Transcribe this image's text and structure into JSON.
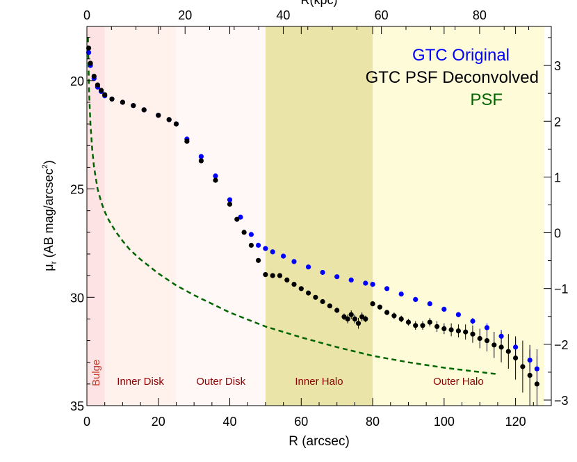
{
  "chart_data": {
    "type": "scatter",
    "title": "",
    "xlabel": "R (arcsec)",
    "ylabel_main": "μ",
    "ylabel_sub": "r",
    "ylabel_rest": " (AB mag/arcsec",
    "ylabel_sup": "2",
    "ylabel_close": ")",
    "top_xlabel": "R(kpc)",
    "xlim": [
      0,
      130
    ],
    "ylim": [
      35,
      17.5
    ],
    "top_xlim_kpc": [
      0,
      94.6
    ],
    "right_ylim": [
      -3.1,
      3.7
    ],
    "x_ticks": [
      "0",
      "20",
      "40",
      "60",
      "80",
      "100",
      "120"
    ],
    "y_ticks": [
      "20",
      "25",
      "30",
      "35"
    ],
    "top_ticks": [
      "0",
      "20",
      "40",
      "60",
      "80"
    ],
    "right_ticks": [
      "3",
      "2",
      "1",
      "0",
      "−1",
      "−2",
      "−3"
    ],
    "regions": [
      {
        "label": "Bulge",
        "x0": 0,
        "x1": 5,
        "color": "#fde3e3",
        "text_color": "#c0392b",
        "vertical": true
      },
      {
        "label": "Inner Disk",
        "x0": 5,
        "x1": 25,
        "color": "#fff1ec",
        "text_color": "#8b0000",
        "vertical": false
      },
      {
        "label": "Outer Disk",
        "x0": 25,
        "x1": 50,
        "color": "#fff8f7",
        "text_color": "#8b0000",
        "vertical": false
      },
      {
        "label": "Inner Halo",
        "x0": 50,
        "x1": 80,
        "color": "#ebe4a8",
        "text_color": "#8b0000",
        "vertical": false
      },
      {
        "label": "Outer Halo",
        "x0": 80,
        "x1": 128,
        "color": "#fefcd8",
        "text_color": "#8b0000",
        "vertical": false
      }
    ],
    "legend": [
      {
        "label": "GTC Original",
        "color": "#0000ff"
      },
      {
        "label": "GTC PSF Deconvolved",
        "color": "#000000"
      },
      {
        "label": "PSF",
        "color": "#006400"
      }
    ],
    "series": [
      {
        "name": "GTC Original",
        "color": "#0000ff",
        "x": [
          0.5,
          1,
          2,
          3,
          4,
          5,
          7,
          10,
          13,
          16,
          20,
          23,
          25,
          28,
          32,
          36,
          40,
          43,
          46,
          48,
          50,
          52,
          55,
          58,
          62,
          66,
          70,
          74,
          78,
          80,
          84,
          88,
          92,
          96,
          100,
          104,
          108,
          112,
          116,
          120,
          124,
          126
        ],
        "y": [
          18.7,
          19.3,
          19.9,
          20.3,
          20.5,
          20.7,
          20.85,
          21.0,
          21.15,
          21.35,
          21.6,
          21.8,
          22.0,
          22.7,
          23.5,
          24.4,
          25.5,
          26.3,
          27.1,
          27.6,
          27.75,
          27.9,
          28.1,
          28.35,
          28.6,
          28.85,
          29.05,
          29.2,
          29.35,
          29.4,
          29.6,
          29.85,
          30.1,
          30.3,
          30.55,
          30.8,
          31.1,
          31.4,
          31.8,
          32.3,
          32.9,
          33.3
        ],
        "err": [
          0.01,
          0.01,
          0.01,
          0.01,
          0.01,
          0.01,
          0.01,
          0.01,
          0.01,
          0.01,
          0.01,
          0.01,
          0.01,
          0.01,
          0.01,
          0.01,
          0.01,
          0.01,
          0.02,
          0.02,
          0.02,
          0.02,
          0.02,
          0.03,
          0.03,
          0.03,
          0.04,
          0.04,
          0.05,
          0.05,
          0.06,
          0.07,
          0.08,
          0.09,
          0.1,
          0.12,
          0.15,
          0.2,
          0.3,
          0.4,
          0.5,
          0.6
        ]
      },
      {
        "name": "GTC PSF Deconvolved",
        "color": "#000000",
        "x": [
          0.5,
          1,
          2,
          3,
          4,
          5,
          7,
          10,
          13,
          16,
          20,
          23,
          25,
          28,
          32,
          36,
          40,
          42,
          44,
          46,
          48,
          50,
          52,
          54,
          56,
          58,
          60,
          62,
          64,
          66,
          68,
          70,
          72,
          73,
          74,
          75,
          76,
          77,
          78,
          80,
          82,
          84,
          86,
          88,
          90,
          92,
          94,
          96,
          98,
          100,
          102,
          104,
          106,
          108,
          110,
          112,
          114,
          116,
          118,
          120,
          122,
          124,
          126
        ],
        "y": [
          18.5,
          19.2,
          19.8,
          20.2,
          20.45,
          20.65,
          20.85,
          21.0,
          21.15,
          21.35,
          21.6,
          21.8,
          22.0,
          22.8,
          23.7,
          24.6,
          25.7,
          26.4,
          27.0,
          27.6,
          28.3,
          28.95,
          29.0,
          29.0,
          29.2,
          29.4,
          29.6,
          29.8,
          30.0,
          30.2,
          30.4,
          30.6,
          30.9,
          31.0,
          30.8,
          31.0,
          31.2,
          30.9,
          31.0,
          30.3,
          30.45,
          30.7,
          30.85,
          31.0,
          31.15,
          31.3,
          31.3,
          31.15,
          31.35,
          31.45,
          31.5,
          31.55,
          31.6,
          31.7,
          31.9,
          32.0,
          32.2,
          32.3,
          32.5,
          32.8,
          33.2,
          33.6,
          34.0
        ],
        "err": [
          0.01,
          0.01,
          0.01,
          0.01,
          0.01,
          0.01,
          0.01,
          0.01,
          0.01,
          0.01,
          0.01,
          0.01,
          0.01,
          0.01,
          0.01,
          0.01,
          0.01,
          0.02,
          0.02,
          0.02,
          0.02,
          0.03,
          0.03,
          0.03,
          0.03,
          0.04,
          0.04,
          0.05,
          0.06,
          0.08,
          0.1,
          0.12,
          0.15,
          0.2,
          0.2,
          0.2,
          0.25,
          0.2,
          0.15,
          0.12,
          0.12,
          0.12,
          0.15,
          0.15,
          0.15,
          0.2,
          0.2,
          0.2,
          0.25,
          0.25,
          0.3,
          0.3,
          0.35,
          0.4,
          0.45,
          0.5,
          0.6,
          0.7,
          0.8,
          1.0,
          1.2,
          1.4,
          1.6
        ]
      },
      {
        "name": "PSF",
        "color": "#006400",
        "style": "dashed",
        "x": [
          0.3,
          0.6,
          1,
          1.5,
          2,
          3,
          4,
          5,
          6,
          8,
          10,
          12,
          15,
          20,
          25,
          30,
          40,
          50,
          60,
          70,
          80,
          90,
          100,
          110,
          115
        ],
        "y": [
          18.0,
          20.5,
          22.0,
          23.2,
          24.0,
          25.0,
          25.6,
          26.05,
          26.4,
          26.95,
          27.4,
          27.8,
          28.25,
          28.9,
          29.45,
          29.9,
          30.7,
          31.35,
          31.85,
          32.3,
          32.7,
          33.0,
          33.25,
          33.45,
          33.55
        ]
      }
    ]
  }
}
